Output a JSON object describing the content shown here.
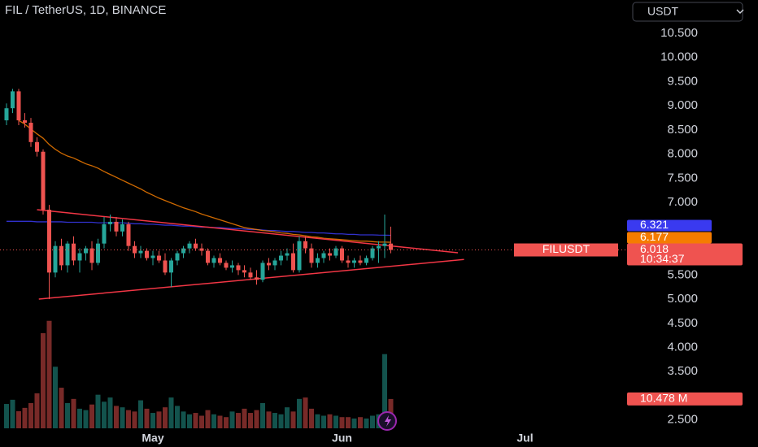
{
  "chart_data": {
    "type": "candlestick",
    "title": "FIL / TetherUS, 1D, BINANCE",
    "currency": "USDT",
    "symbol": "FILUSDT",
    "countdown": "10:34:37",
    "up_color": "#26a69a",
    "down_color": "#ef5350",
    "ylim": [
      1.94,
      11.19
    ],
    "yticks": [
      {
        "value": 10.5,
        "label": "10.500"
      },
      {
        "value": 10,
        "label": "10.000"
      },
      {
        "value": 9.5,
        "label": "9.500"
      },
      {
        "value": 9,
        "label": "9.000"
      },
      {
        "value": 8.5,
        "label": "8.500"
      },
      {
        "value": 8,
        "label": "8.000"
      },
      {
        "value": 7.5,
        "label": "7.500"
      },
      {
        "value": 7,
        "label": "7.000"
      },
      {
        "value": 5.5,
        "label": "5.500"
      },
      {
        "value": 5,
        "label": "5.000"
      },
      {
        "value": 4.5,
        "label": "4.500"
      },
      {
        "value": 4,
        "label": "4.000"
      },
      {
        "value": 3.5,
        "label": "3.500"
      },
      {
        "value": 2.5,
        "label": "2.500"
      }
    ],
    "categories": [
      null,
      null,
      null,
      null,
      null,
      null,
      null,
      null,
      null,
      null,
      null,
      null,
      null,
      null,
      null,
      null,
      null,
      null,
      null,
      null,
      null,
      null,
      null,
      null,
      "May",
      null,
      null,
      null,
      null,
      null,
      null,
      null,
      null,
      null,
      null,
      null,
      null,
      null,
      null,
      null,
      null,
      null,
      null,
      null,
      null,
      null,
      null,
      null,
      null,
      null,
      null,
      null,
      null,
      null,
      null,
      "Jun",
      null,
      null,
      null,
      null,
      null,
      null,
      null,
      null,
      null,
      null,
      null,
      null,
      null,
      null,
      null,
      null,
      null,
      null,
      null,
      null,
      null,
      null,
      null,
      null,
      null,
      null,
      null,
      null,
      null,
      "Jul"
    ],
    "open": [
      8.7,
      8.95,
      9.3,
      8.7,
      8.65,
      8.25,
      8.05,
      6.85,
      5.55,
      6.1,
      5.7,
      6.15,
      5.8,
      5.95,
      6.05,
      5.75,
      6.15,
      6.55,
      6.6,
      6.4,
      6.55,
      6.1,
      5.95,
      6.0,
      5.85,
      5.9,
      5.8,
      5.55,
      5.8,
      5.95,
      6.05,
      6.15,
      6.05,
      6.0,
      5.75,
      5.85,
      5.75,
      5.65,
      5.7,
      5.6,
      5.55,
      5.45,
      5.4,
      5.75,
      5.7,
      5.8,
      5.9,
      5.95,
      5.6,
      6.2,
      6.05,
      5.75,
      5.85,
      5.95,
      5.9,
      6.05,
      5.8,
      5.75,
      5.8,
      5.75,
      5.85,
      6.05,
      6.1,
      6.15,
      null,
      null,
      null,
      null,
      null,
      null,
      null,
      null,
      null,
      null,
      null,
      null,
      null,
      null,
      null,
      null,
      null,
      null,
      null,
      null,
      null,
      null
    ],
    "high": [
      9.05,
      9.35,
      9.35,
      8.85,
      8.75,
      8.35,
      8.1,
      6.95,
      6.2,
      6.25,
      6.2,
      6.3,
      6.05,
      6.1,
      6.2,
      6.25,
      6.7,
      6.75,
      6.7,
      6.65,
      6.6,
      6.2,
      6.1,
      6.05,
      6.0,
      6.0,
      5.95,
      5.85,
      6.0,
      6.1,
      6.2,
      6.25,
      6.15,
      6.05,
      5.9,
      5.95,
      5.8,
      5.8,
      5.75,
      5.7,
      5.65,
      5.6,
      5.8,
      5.85,
      5.85,
      6.0,
      6.05,
      6.15,
      6.3,
      6.3,
      6.15,
      5.95,
      6.0,
      6.05,
      6.1,
      6.1,
      5.9,
      5.85,
      5.9,
      5.9,
      6.1,
      6.2,
      6.75,
      6.5,
      null,
      null,
      null,
      null,
      null,
      null,
      null,
      null,
      null,
      null,
      null,
      null,
      null,
      null,
      null,
      null,
      null,
      null,
      null,
      null,
      null,
      null
    ],
    "low": [
      8.6,
      8.85,
      8.6,
      8.55,
      8.15,
      7.95,
      6.75,
      5.0,
      5.45,
      5.6,
      5.55,
      5.7,
      5.55,
      5.8,
      5.6,
      5.7,
      6.05,
      6.4,
      6.3,
      6.3,
      6.0,
      5.85,
      5.85,
      5.8,
      5.7,
      5.75,
      5.5,
      5.25,
      5.7,
      5.85,
      5.95,
      6.0,
      5.9,
      5.7,
      5.65,
      5.7,
      5.6,
      5.55,
      5.5,
      5.45,
      5.4,
      5.3,
      5.35,
      5.6,
      5.6,
      5.7,
      5.8,
      5.55,
      5.55,
      5.95,
      5.65,
      5.65,
      5.75,
      5.8,
      5.85,
      5.75,
      5.65,
      5.65,
      5.7,
      5.7,
      5.8,
      5.75,
      5.85,
      5.95,
      null,
      null,
      null,
      null,
      null,
      null,
      null,
      null,
      null,
      null,
      null,
      null,
      null,
      null,
      null,
      null,
      null,
      null,
      null,
      null,
      null,
      null
    ],
    "close": [
      8.95,
      9.3,
      8.7,
      8.65,
      8.25,
      8.05,
      6.85,
      5.55,
      6.1,
      5.7,
      6.15,
      5.8,
      5.95,
      6.05,
      5.75,
      6.15,
      6.55,
      6.6,
      6.4,
      6.55,
      6.1,
      5.95,
      6.0,
      5.85,
      5.9,
      5.8,
      5.55,
      5.8,
      5.95,
      6.05,
      6.15,
      6.05,
      6.0,
      5.75,
      5.85,
      5.75,
      5.65,
      5.7,
      5.6,
      5.55,
      5.45,
      5.4,
      5.75,
      5.7,
      5.8,
      5.9,
      5.95,
      5.6,
      6.2,
      6.05,
      5.75,
      5.85,
      5.95,
      5.9,
      6.05,
      5.8,
      5.75,
      5.8,
      5.75,
      5.85,
      6.05,
      6.1,
      6.15,
      6.018,
      null,
      null,
      null,
      null,
      null,
      null,
      null,
      null,
      null,
      null,
      null,
      null,
      null,
      null,
      null,
      null,
      null,
      null,
      null,
      null,
      null,
      null
    ],
    "volume": {
      "ylim": [
        0,
        45
      ],
      "last_label": "10.478 M",
      "values": [
        8.7,
        10.2,
        6.1,
        7.3,
        9.0,
        12.5,
        34.0,
        38.4,
        22.0,
        14.5,
        9.0,
        10.5,
        7.0,
        6.5,
        8.5,
        12.0,
        9.5,
        11.0,
        8.0,
        7.5,
        6.5,
        6.0,
        10.0,
        7.0,
        5.5,
        6.0,
        7.5,
        11.0,
        8.0,
        6.0,
        5.0,
        5.5,
        4.5,
        6.5,
        5.0,
        4.5,
        4.0,
        6.0,
        5.5,
        7.0,
        5.5,
        6.5,
        9.0,
        6.0,
        5.5,
        5.0,
        7.5,
        6.0,
        10.5,
        11.0,
        7.0,
        5.0,
        4.5,
        5.0,
        4.5,
        4.0,
        4.0,
        3.5,
        4.0,
        3.5,
        4.5,
        5.0,
        26.5,
        10.478,
        null,
        null,
        null,
        null,
        null,
        null,
        null,
        null,
        null,
        null,
        null,
        null,
        null,
        null,
        null,
        null,
        null,
        null,
        null,
        null,
        null,
        null
      ]
    },
    "lines": [
      {
        "color": "#3a3af0",
        "values": [
          6.61,
          6.61,
          6.61,
          6.61,
          6.61,
          6.6,
          6.6,
          6.6,
          6.6,
          6.6,
          6.59,
          6.59,
          6.59,
          6.59,
          6.59,
          6.58,
          6.58,
          6.58,
          6.58,
          6.58,
          6.57,
          6.56,
          6.56,
          6.55,
          6.55,
          6.54,
          6.53,
          6.53,
          6.52,
          6.51,
          6.51,
          6.5,
          6.49,
          6.49,
          6.48,
          6.48,
          6.47,
          6.46,
          6.46,
          6.45,
          6.44,
          6.44,
          6.43,
          6.42,
          6.42,
          6.41,
          6.4,
          6.4,
          6.39,
          6.38,
          6.38,
          6.37,
          6.37,
          6.36,
          6.35,
          6.35,
          6.34,
          6.34,
          6.33,
          6.33,
          6.33,
          6.325,
          6.323,
          6.321,
          null,
          null,
          null,
          null,
          null,
          null,
          null,
          null,
          null,
          null,
          null,
          null,
          null,
          null,
          null,
          null,
          null,
          null,
          null,
          null,
          null,
          null
        ]
      },
      {
        "color": "#f57c00",
        "values": [
          null,
          null,
          8.7,
          8.62,
          8.52,
          8.42,
          8.33,
          8.2,
          8.1,
          8.02,
          7.96,
          7.92,
          7.86,
          7.8,
          7.76,
          7.71,
          7.64,
          7.58,
          7.52,
          7.46,
          7.4,
          7.34,
          7.28,
          7.21,
          7.15,
          7.09,
          7.04,
          6.99,
          6.94,
          6.89,
          6.85,
          6.81,
          6.76,
          6.72,
          6.68,
          6.64,
          6.6,
          6.56,
          6.52,
          6.48,
          6.46,
          6.44,
          6.42,
          6.41,
          6.39,
          6.37,
          6.36,
          6.34,
          6.33,
          6.31,
          6.29,
          6.28,
          6.26,
          6.25,
          6.24,
          6.23,
          6.22,
          6.21,
          6.2,
          6.2,
          6.19,
          6.18,
          6.18,
          6.177,
          null,
          null,
          null,
          null,
          null,
          null,
          null,
          null,
          null,
          null,
          null,
          null,
          null,
          null,
          null,
          null,
          null,
          null,
          null,
          null,
          null,
          null
        ]
      }
    ],
    "trendlines": [
      {
        "color": "#f23645",
        "x": [
          5,
          74
        ],
        "y": [
          6.85,
          5.96
        ]
      },
      {
        "color": "#f23645",
        "x": [
          5.3,
          75
        ],
        "y": [
          5.0,
          5.82
        ]
      }
    ]
  }
}
